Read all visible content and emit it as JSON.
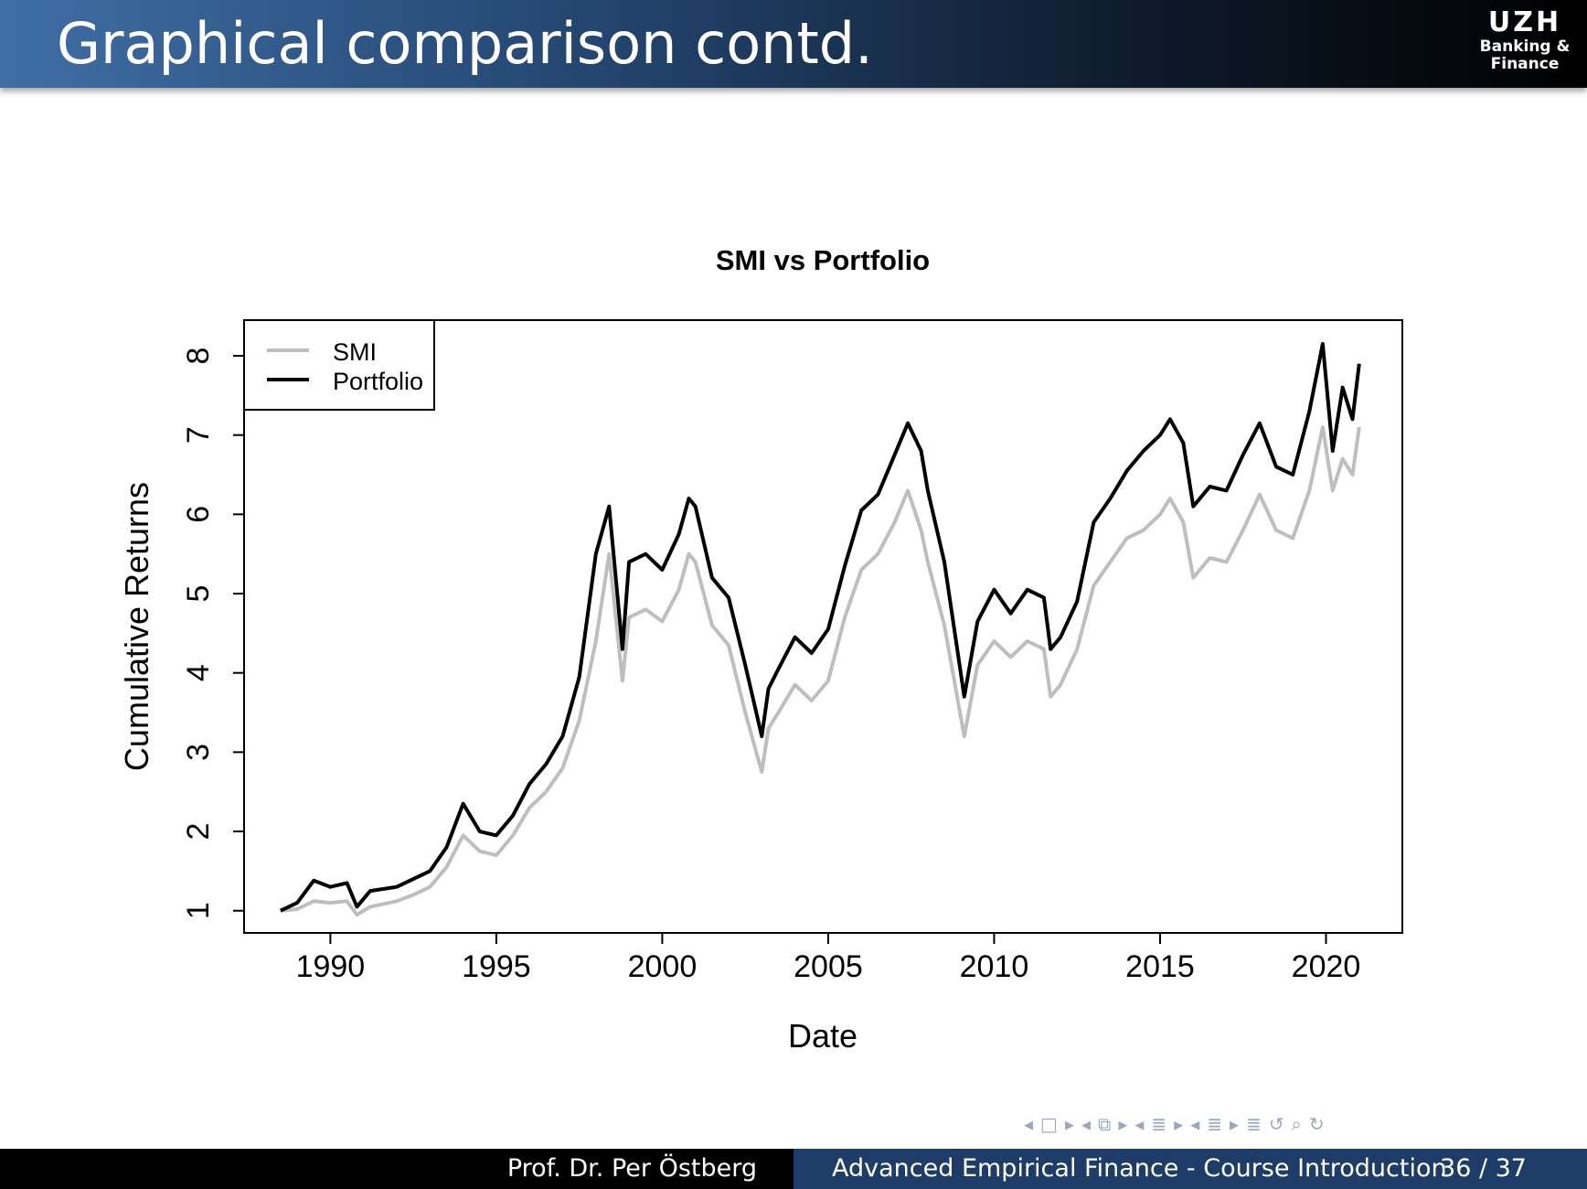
{
  "header": {
    "title": "Graphical comparison contd."
  },
  "logo": {
    "main": "UZH",
    "sub": "Banking &\nFinance"
  },
  "nav_icons": [
    "arrow-left-icon",
    "frame-icon",
    "arrow-right-icon",
    "arrow-left-icon",
    "subsection-icon",
    "arrow-right-icon",
    "arrow-left-icon",
    "section-icon",
    "arrow-right-icon",
    "arrow-left-icon",
    "align-icon",
    "arrow-right-icon",
    "align-icon",
    "undo-icon",
    "search-icon",
    "redo-icon"
  ],
  "footer": {
    "author": "Prof. Dr. Per Östberg",
    "course": "Advanced Empirical Finance - Course Introduction",
    "page": "36 / 37"
  },
  "colors": {
    "smi": "#bebebe",
    "portfolio": "#000000",
    "footer_right": "#1e3c68"
  },
  "chart_data": {
    "type": "line",
    "title": "SMI vs Portfolio",
    "xlabel": "Date",
    "ylabel": "Cumulative Returns",
    "xlim": [
      1987.4,
      2022.3
    ],
    "ylim": [
      0.72,
      8.45
    ],
    "x_ticks": [
      1990,
      1995,
      2000,
      2005,
      2010,
      2015,
      2020
    ],
    "y_ticks": [
      1,
      2,
      3,
      4,
      5,
      6,
      7,
      8
    ],
    "legend": {
      "position": "top-left",
      "entries": [
        "SMI",
        "Portfolio"
      ]
    },
    "grid": false,
    "series": [
      {
        "name": "SMI",
        "color": "#bebebe",
        "x": [
          1988.5,
          1989.0,
          1989.5,
          1990.0,
          1990.5,
          1990.8,
          1991.2,
          1992.0,
          1992.5,
          1993.0,
          1993.5,
          1994.0,
          1994.5,
          1995.0,
          1995.5,
          1996.0,
          1996.5,
          1997.0,
          1997.5,
          1998.0,
          1998.4,
          1998.8,
          1999.0,
          1999.5,
          2000.0,
          2000.5,
          2000.8,
          2001.0,
          2001.5,
          2002.0,
          2002.5,
          2003.0,
          2003.2,
          2003.5,
          2004.0,
          2004.5,
          2005.0,
          2005.5,
          2006.0,
          2006.5,
          2007.0,
          2007.4,
          2007.8,
          2008.0,
          2008.5,
          2009.1,
          2009.5,
          2010.0,
          2010.5,
          2011.0,
          2011.5,
          2011.7,
          2012.0,
          2012.5,
          2013.0,
          2013.5,
          2014.0,
          2014.5,
          2015.0,
          2015.3,
          2015.7,
          2016.0,
          2016.5,
          2017.0,
          2017.5,
          2018.0,
          2018.5,
          2019.0,
          2019.5,
          2019.9,
          2020.2,
          2020.5,
          2020.8,
          2021.0
        ],
        "values": [
          1.0,
          1.02,
          1.12,
          1.1,
          1.12,
          0.95,
          1.05,
          1.12,
          1.2,
          1.3,
          1.55,
          1.95,
          1.75,
          1.7,
          1.95,
          2.3,
          2.5,
          2.8,
          3.4,
          4.4,
          5.5,
          3.9,
          4.7,
          4.8,
          4.65,
          5.05,
          5.5,
          5.4,
          4.6,
          4.35,
          3.5,
          2.75,
          3.3,
          3.5,
          3.85,
          3.65,
          3.9,
          4.7,
          5.3,
          5.5,
          5.9,
          6.3,
          5.8,
          5.4,
          4.6,
          3.2,
          4.1,
          4.4,
          4.2,
          4.4,
          4.3,
          3.7,
          3.85,
          4.3,
          5.1,
          5.4,
          5.7,
          5.8,
          6.0,
          6.2,
          5.9,
          5.2,
          5.45,
          5.4,
          5.8,
          6.25,
          5.8,
          5.7,
          6.3,
          7.1,
          6.3,
          6.7,
          6.5,
          7.1
        ]
      },
      {
        "name": "Portfolio",
        "color": "#000000",
        "x": [
          1988.5,
          1989.0,
          1989.5,
          1990.0,
          1990.5,
          1990.8,
          1991.2,
          1992.0,
          1992.5,
          1993.0,
          1993.5,
          1994.0,
          1994.5,
          1995.0,
          1995.5,
          1996.0,
          1996.5,
          1997.0,
          1997.5,
          1998.0,
          1998.4,
          1998.8,
          1999.0,
          1999.5,
          2000.0,
          2000.5,
          2000.8,
          2001.0,
          2001.5,
          2002.0,
          2002.5,
          2003.0,
          2003.2,
          2003.5,
          2004.0,
          2004.5,
          2005.0,
          2005.5,
          2006.0,
          2006.5,
          2007.0,
          2007.4,
          2007.8,
          2008.0,
          2008.5,
          2009.1,
          2009.5,
          2010.0,
          2010.5,
          2011.0,
          2011.5,
          2011.7,
          2012.0,
          2012.5,
          2013.0,
          2013.5,
          2014.0,
          2014.5,
          2015.0,
          2015.3,
          2015.7,
          2016.0,
          2016.5,
          2017.0,
          2017.5,
          2018.0,
          2018.5,
          2019.0,
          2019.5,
          2019.9,
          2020.2,
          2020.5,
          2020.8,
          2021.0
        ],
        "values": [
          1.0,
          1.1,
          1.38,
          1.3,
          1.35,
          1.05,
          1.25,
          1.3,
          1.4,
          1.5,
          1.8,
          2.35,
          2.0,
          1.95,
          2.2,
          2.6,
          2.85,
          3.2,
          3.95,
          5.5,
          6.1,
          4.3,
          5.4,
          5.5,
          5.3,
          5.75,
          6.2,
          6.1,
          5.2,
          4.95,
          4.1,
          3.2,
          3.8,
          4.05,
          4.45,
          4.25,
          4.55,
          5.35,
          6.05,
          6.25,
          6.75,
          7.15,
          6.8,
          6.3,
          5.4,
          3.7,
          4.65,
          5.05,
          4.75,
          5.05,
          4.95,
          4.3,
          4.45,
          4.9,
          5.9,
          6.2,
          6.55,
          6.8,
          7.0,
          7.2,
          6.9,
          6.1,
          6.35,
          6.3,
          6.75,
          7.15,
          6.6,
          6.5,
          7.3,
          8.15,
          6.8,
          7.6,
          7.2,
          7.9
        ]
      }
    ]
  }
}
